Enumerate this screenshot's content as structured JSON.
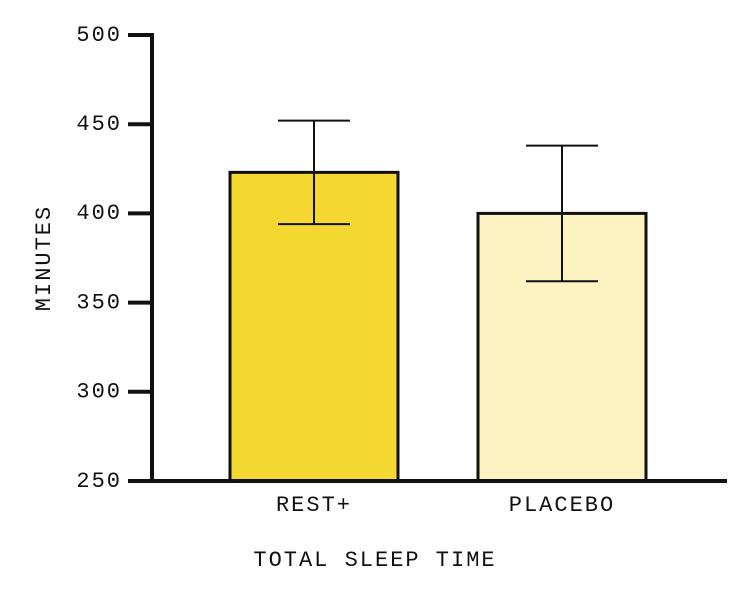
{
  "chart_data": {
    "type": "bar",
    "categories": [
      "REST+",
      "PLACEBO"
    ],
    "values": [
      423,
      400
    ],
    "errors": [
      29,
      38
    ],
    "colors": [
      "#f5d731",
      "#fdf2c1"
    ],
    "xlabel": "TOTAL SLEEP TIME",
    "ylabel": "MINUTES",
    "ylim": [
      250,
      500
    ],
    "yticks": [
      250,
      300,
      350,
      400,
      450,
      500
    ],
    "grid": false
  }
}
